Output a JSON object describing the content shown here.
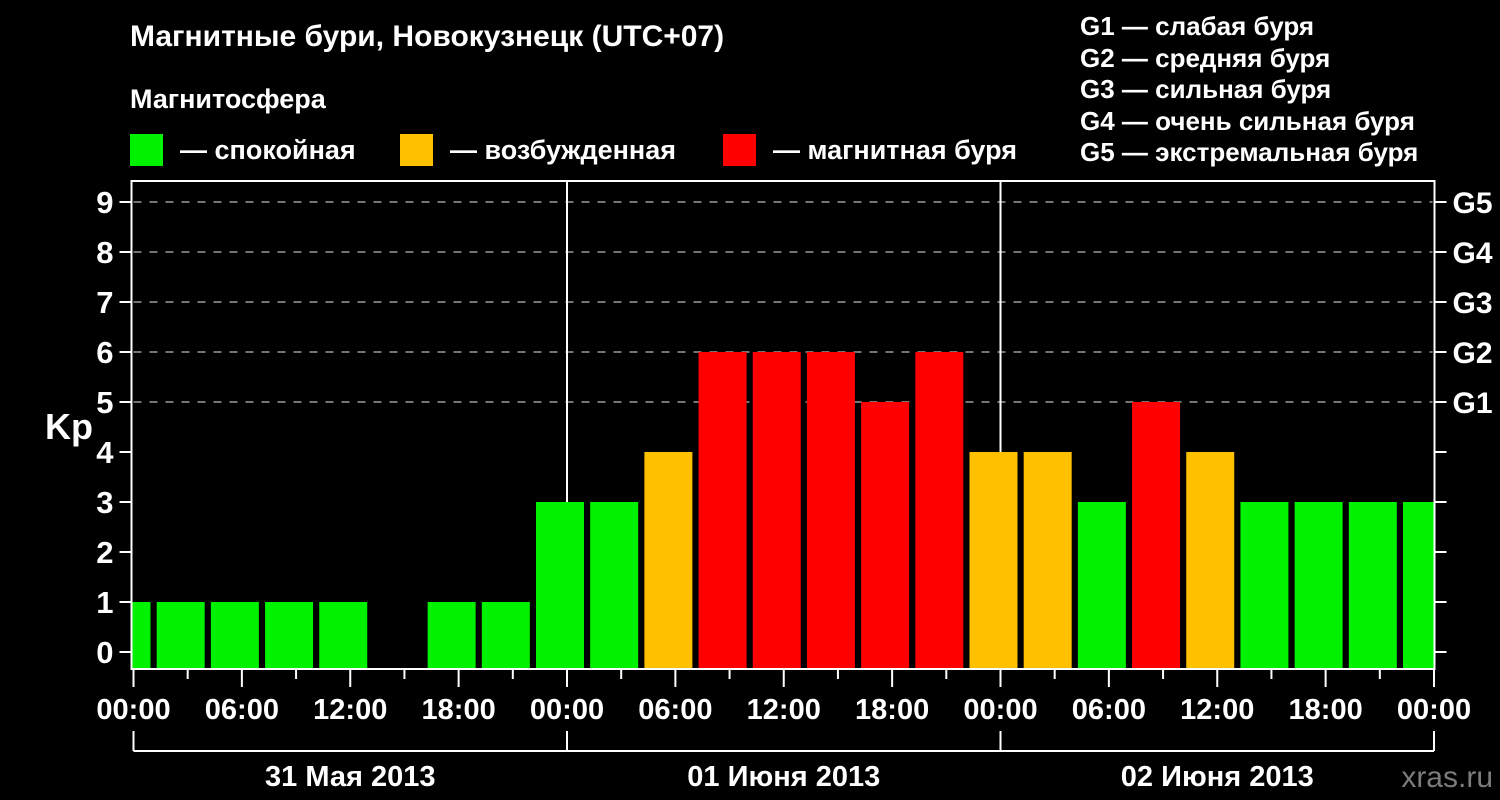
{
  "chart_data": {
    "type": "bar",
    "title": "Магнитные бури, Новокузнецк (UTC+07)",
    "ylabel": "Kp",
    "ylim": [
      0,
      9
    ],
    "y_ticks": [
      "0",
      "1",
      "2",
      "3",
      "4",
      "5",
      "6",
      "7",
      "8",
      "9"
    ],
    "x_step_hours": 3,
    "x_tick_labels": [
      "00:00",
      "06:00",
      "12:00",
      "18:00",
      "00:00",
      "06:00",
      "12:00",
      "18:00",
      "00:00",
      "06:00",
      "12:00",
      "18:00",
      "00:00"
    ],
    "days": [
      "31 Мая 2013",
      "01 Июня 2013",
      "02 Июня 2013"
    ],
    "right_axis": [
      {
        "kp": 5,
        "label": "G1"
      },
      {
        "kp": 6,
        "label": "G2"
      },
      {
        "kp": 7,
        "label": "G3"
      },
      {
        "kp": 8,
        "label": "G4"
      },
      {
        "kp": 9,
        "label": "G5"
      }
    ],
    "grid": "dashed horizontal lines at Kp 5-9, no vertical grid",
    "legend_position": "top",
    "values": [
      1,
      1,
      1,
      1,
      1,
      null,
      1,
      1,
      3,
      3,
      4,
      6,
      6,
      6,
      5,
      6,
      4,
      4,
      3,
      5,
      4,
      3,
      3,
      3,
      3
    ],
    "color_rules": {
      "quiet_max": 3,
      "excited_max": 4
    },
    "colors": {
      "quiet": "#00f200",
      "excited": "#ffc000",
      "storm": "#ff0000"
    }
  },
  "magnetosphere_legend": {
    "caption": "Магнитосфера",
    "items": [
      {
        "label": "— спокойная",
        "color_key": "quiet"
      },
      {
        "label": "— возбужденная",
        "color_key": "excited"
      },
      {
        "label": "— магнитная буря",
        "color_key": "storm"
      }
    ]
  },
  "storm_scale_legend": {
    "lines": [
      "G1 — слабая буря",
      "G2 — средняя буря",
      "G3 — сильная буря",
      "G4 — очень сильная буря",
      "G5 — экстремальная буря"
    ]
  },
  "watermark": "xras.ru"
}
